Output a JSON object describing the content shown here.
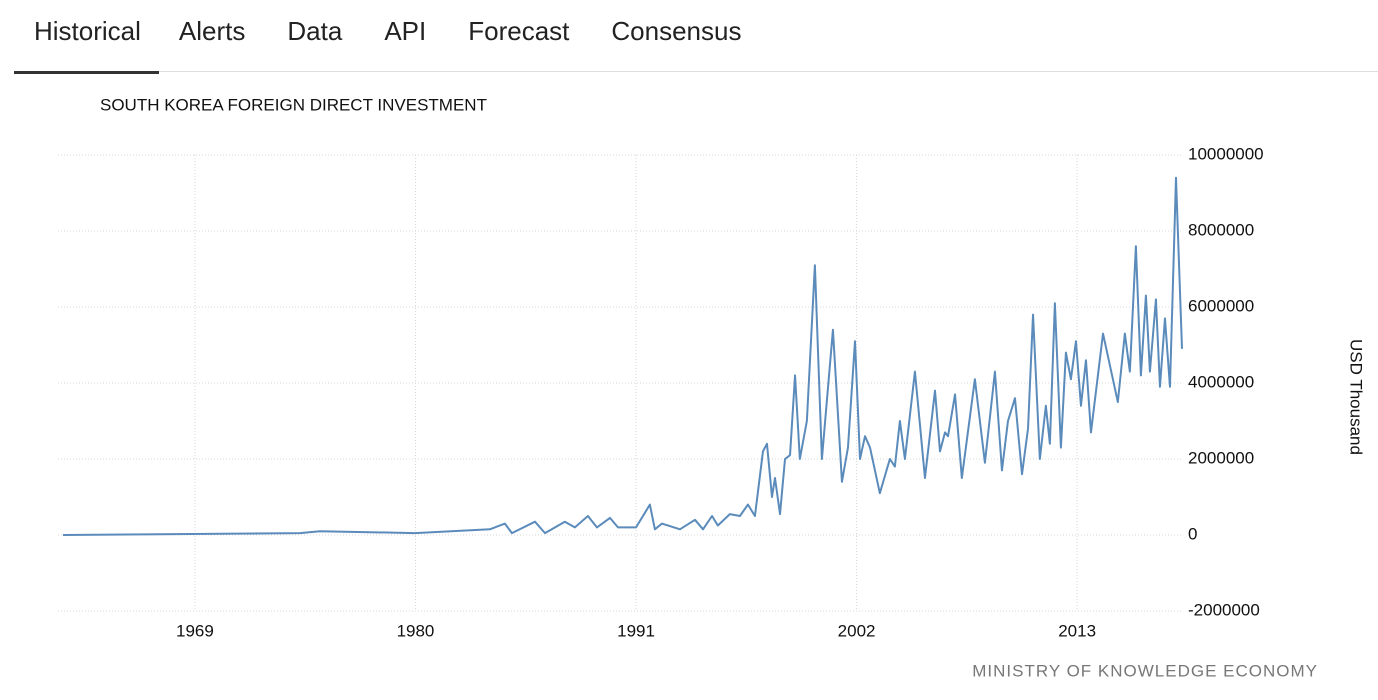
{
  "tabs": [
    "Historical",
    "Alerts",
    "Data",
    "API",
    "Forecast",
    "Consensus"
  ],
  "source": "MINISTRY OF KNOWLEDGE ECONOMY",
  "chart_data": {
    "type": "line",
    "title": "SOUTH KOREA FOREIGN DIRECT INVESTMENT",
    "y_label": "USD Thousand",
    "xlim": [
      1962.17,
      2018.23
    ],
    "xticks": [
      1969,
      1980,
      1991,
      2002,
      2013
    ],
    "ylim": [
      -2000000,
      10000000
    ],
    "yticks": [
      -2000000,
      0,
      2000000,
      4000000,
      6000000,
      8000000,
      10000000
    ],
    "grid": true,
    "x": [
      1962.42,
      1974.24,
      1975.23,
      1979.97,
      1983.71,
      1984.46,
      1984.81,
      1985.96,
      1986.46,
      1987.45,
      1987.95,
      1988.6,
      1989.05,
      1989.7,
      1990.1,
      1991.0,
      1991.69,
      1991.94,
      1992.29,
      1993.19,
      1993.94,
      1994.34,
      1994.79,
      1995.08,
      1995.68,
      1996.18,
      1996.58,
      1996.93,
      1997.33,
      1997.53,
      1997.78,
      1997.93,
      1998.18,
      1998.43,
      1998.68,
      1998.93,
      1999.17,
      1999.52,
      1999.92,
      2000.27,
      2000.82,
      2001.27,
      2001.57,
      2001.92,
      2002.17,
      2002.42,
      2002.67,
      2003.16,
      2003.66,
      2003.91,
      2004.16,
      2004.41,
      2004.91,
      2005.41,
      2005.91,
      2006.16,
      2006.41,
      2006.56,
      2006.91,
      2007.25,
      2007.9,
      2008.4,
      2008.9,
      2009.25,
      2009.55,
      2009.9,
      2010.25,
      2010.55,
      2010.8,
      2011.14,
      2011.44,
      2011.64,
      2011.89,
      2012.19,
      2012.44,
      2012.69,
      2012.94,
      2013.19,
      2013.44,
      2013.69,
      2014.29,
      2015.03,
      2015.38,
      2015.63,
      2015.93,
      2016.18,
      2016.43,
      2016.63,
      2016.93,
      2017.13,
      2017.38,
      2017.63,
      2017.93,
      2018.23
    ],
    "series": [
      {
        "name": "Foreign Direct Investment",
        "color": "#5b8bbb",
        "values": [
          0,
          50000,
          100000,
          50000,
          150000,
          300000,
          50000,
          350000,
          50000,
          350000,
          200000,
          500000,
          200000,
          450000,
          200000,
          200000,
          800000,
          150000,
          300000,
          150000,
          400000,
          150000,
          500000,
          250000,
          550000,
          500000,
          800000,
          500000,
          2200000,
          2400000,
          1000000,
          1500000,
          550000,
          2000000,
          2100000,
          4200000,
          2000000,
          3000000,
          7100000,
          2000000,
          5400000,
          1400000,
          2300000,
          5100000,
          2000000,
          2600000,
          2300000,
          1100000,
          2000000,
          1800000,
          3000000,
          2000000,
          4300000,
          1500000,
          3800000,
          2200000,
          2700000,
          2600000,
          3700000,
          1500000,
          4100000,
          1900000,
          4300000,
          1700000,
          3000000,
          3600000,
          1600000,
          2800000,
          5800000,
          2000000,
          3400000,
          2400000,
          6100000,
          2300000,
          4800000,
          4100000,
          5100000,
          3400000,
          4600000,
          2700000,
          5300000,
          3500000,
          5300000,
          4300000,
          7600000,
          4200000,
          6300000,
          4300000,
          6200000,
          3900000,
          5700000,
          3900000,
          9400000,
          4900000
        ]
      }
    ]
  }
}
